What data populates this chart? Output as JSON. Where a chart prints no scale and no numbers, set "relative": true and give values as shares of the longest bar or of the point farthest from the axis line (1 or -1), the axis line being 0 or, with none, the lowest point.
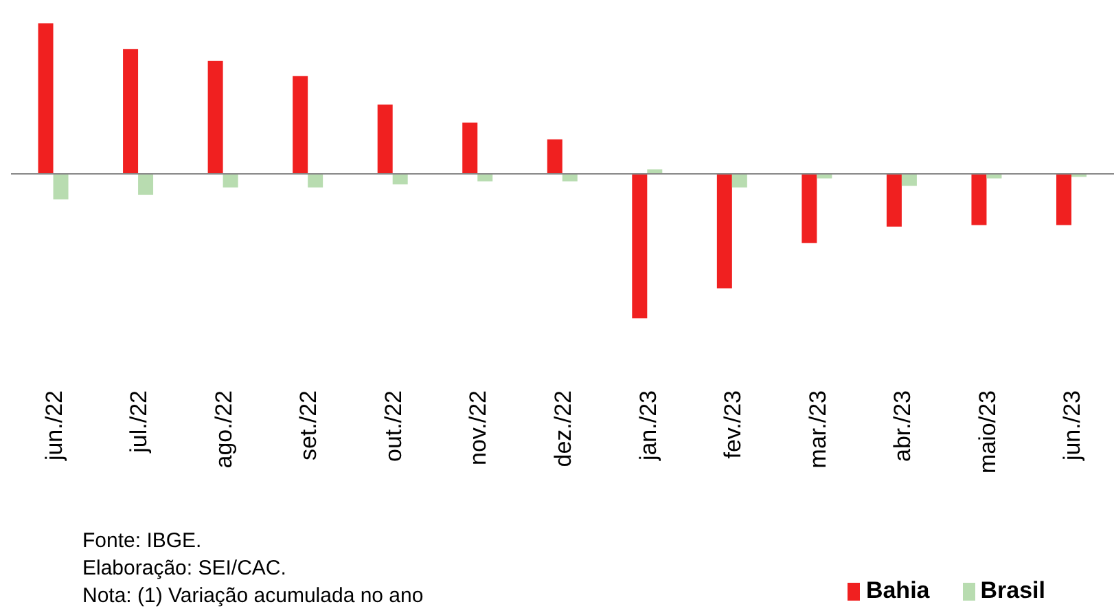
{
  "chart_data": {
    "type": "bar",
    "relative": true,
    "categories": [
      "jun./22",
      "jul./22",
      "ago./22",
      "set./22",
      "out./22",
      "nov./22",
      "dez./22",
      "jan./23",
      "fev./23",
      "mar./23",
      "abr./23",
      "maio/23",
      "jun./23"
    ],
    "series": [
      {
        "name": "Bahia",
        "color": "#f02020",
        "values": [
          1.0,
          0.83,
          0.75,
          0.65,
          0.46,
          0.34,
          0.23,
          -0.96,
          -0.76,
          -0.46,
          -0.35,
          -0.34,
          -0.34
        ]
      },
      {
        "name": "Brasil",
        "color": "#b8dcb0",
        "values": [
          -0.17,
          -0.14,
          -0.09,
          -0.09,
          -0.07,
          -0.05,
          -0.05,
          0.03,
          -0.09,
          -0.03,
          -0.08,
          -0.03,
          -0.02
        ]
      }
    ],
    "legend": "bottom right",
    "grid": false,
    "annotations": [
      "Fonte: IBGE.",
      "Elaboração: SEI/CAC.",
      "Nota: (1) Variação acumulada no ano"
    ]
  }
}
